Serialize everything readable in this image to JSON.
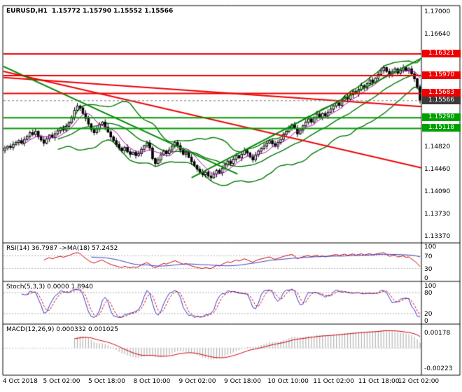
{
  "header": {
    "title": "EURUSD,H1",
    "ohlc": "1.15772 1.15790 1.15552 1.15566"
  },
  "chart_data": {
    "type": "candlestick",
    "symbol": "EURUSD",
    "timeframe": "H1",
    "current_bar": {
      "open": 1.15772,
      "high": 1.1579,
      "low": 1.15552,
      "close": 1.15566
    },
    "y_axis": {
      "price_max": 1.17102,
      "price_min": 1.13268
    },
    "y_ticks": [
      {
        "label": "1.17000",
        "price": 1.17,
        "style": "plain"
      },
      {
        "label": "1.16640",
        "price": 1.1664,
        "style": "plain"
      },
      {
        "label": "1.16321",
        "price": 1.16321,
        "style": "resistance"
      },
      {
        "label": "1.15970",
        "price": 1.1597,
        "style": "resistance"
      },
      {
        "label": "1.15683",
        "price": 1.15683,
        "style": "resistance"
      },
      {
        "label": "1.15566",
        "price": 1.15566,
        "style": "current"
      },
      {
        "label": "1.15290",
        "price": 1.1529,
        "style": "support"
      },
      {
        "label": "1.15118",
        "price": 1.15118,
        "style": "support"
      },
      {
        "label": "1.14820",
        "price": 1.1482,
        "style": "plain"
      },
      {
        "label": "1.14460",
        "price": 1.1446,
        "style": "plain"
      },
      {
        "label": "1.14090",
        "price": 1.1409,
        "style": "plain"
      },
      {
        "label": "1.13730",
        "price": 1.1373,
        "style": "plain"
      },
      {
        "label": "1.13370",
        "price": 1.1337,
        "style": "plain"
      }
    ],
    "x_labels": [
      {
        "label": "4 Oct 2018",
        "pos": 0.04
      },
      {
        "label": "5 Oct 02:00",
        "pos": 0.139
      },
      {
        "label": "5 Oct 18:00",
        "pos": 0.247
      },
      {
        "label": "8 Oct 10:00",
        "pos": 0.355
      },
      {
        "label": "9 Oct 02:00",
        "pos": 0.464
      },
      {
        "label": "9 Oct 18:00",
        "pos": 0.572
      },
      {
        "label": "10 Oct 10:00",
        "pos": 0.681
      },
      {
        "label": "11 Oct 02:00",
        "pos": 0.79
      },
      {
        "label": "11 Oct 18:00",
        "pos": 0.898
      },
      {
        "label": "12 Oct 02:00",
        "pos": 0.993
      }
    ],
    "closes": [
      1.148,
      1.1483,
      1.1481,
      1.1486,
      1.1489,
      1.1492,
      1.1488,
      1.1494,
      1.1499,
      1.1505,
      1.1502,
      1.1507,
      1.1498,
      1.1493,
      1.1488,
      1.1495,
      1.1501,
      1.1497,
      1.1503,
      1.1508,
      1.1512,
      1.1509,
      1.1515,
      1.1521,
      1.153,
      1.1541,
      1.1548,
      1.1545,
      1.1536,
      1.1528,
      1.1519,
      1.151,
      1.1505,
      1.1511,
      1.1518,
      1.1522,
      1.1514,
      1.1506,
      1.1498,
      1.1492,
      1.1486,
      1.148,
      1.1476,
      1.1481,
      1.1474,
      1.147,
      1.1473,
      1.1468,
      1.1471,
      1.1478,
      1.1484,
      1.1488,
      1.148,
      1.1463,
      1.1455,
      1.1461,
      1.1469,
      1.1475,
      1.1471,
      1.1477,
      1.1483,
      1.1489,
      1.1484,
      1.1477,
      1.147,
      1.1473,
      1.1465,
      1.1458,
      1.1452,
      1.1446,
      1.1441,
      1.1437,
      1.1441,
      1.1435,
      1.1432,
      1.1438,
      1.1444,
      1.144,
      1.1447,
      1.1453,
      1.1459,
      1.1455,
      1.1462,
      1.1468,
      1.1464,
      1.147,
      1.1476,
      1.1472,
      1.1466,
      1.1461,
      1.1469,
      1.1475,
      1.1479,
      1.1483,
      1.1488,
      1.1492,
      1.1487,
      1.1483,
      1.1489,
      1.1494,
      1.1502,
      1.1507,
      1.1513,
      1.1518,
      1.1512,
      1.1503,
      1.1509,
      1.1516,
      1.1522,
      1.1527,
      1.1522,
      1.1529,
      1.1535,
      1.153,
      1.1536,
      1.1532,
      1.1538,
      1.1543,
      1.1548,
      1.1553,
      1.1549,
      1.1557,
      1.1563,
      1.1559,
      1.1566,
      1.1572,
      1.1568,
      1.1575,
      1.1581,
      1.1577,
      1.1584,
      1.159,
      1.1586,
      1.1593,
      1.1599,
      1.1605,
      1.161,
      1.1604,
      1.1598,
      1.1603,
      1.1608,
      1.1601,
      1.1606,
      1.161,
      1.1605,
      1.1608,
      1.16,
      1.1592,
      1.1579,
      1.15566
    ],
    "current_price": 1.15566,
    "levels": [
      {
        "price": 1.16321,
        "color": "#ee0000",
        "width": 2,
        "role": "resistance"
      },
      {
        "price": 1.1597,
        "color": "#ee0000",
        "width": 2,
        "role": "resistance"
      },
      {
        "price": 1.15683,
        "color": "#ee0000",
        "width": 2,
        "role": "resistance"
      },
      {
        "price": 1.1529,
        "color": "#009900",
        "width": 2,
        "role": "support"
      },
      {
        "price": 1.15118,
        "color": "#009900",
        "width": 2,
        "role": "support"
      }
    ],
    "trendlines": [
      {
        "x1": 0.0,
        "p1": 1.1604,
        "x2": 1.0,
        "p2": 1.1448,
        "color": "#ee0000",
        "width": 2
      },
      {
        "x1": 0.0,
        "p1": 1.1594,
        "x2": 1.0,
        "p2": 1.1547,
        "color": "#ee0000",
        "width": 2
      },
      {
        "x1": 0.0,
        "p1": 1.1612,
        "x2": 0.56,
        "p2": 1.1438,
        "color": "#008800",
        "width": 2
      },
      {
        "x1": 0.45,
        "p1": 1.1432,
        "x2": 1.0,
        "p2": 1.1625,
        "color": "#008800",
        "width": 2
      }
    ],
    "indicators": {
      "rsi": {
        "label": "RSI(14) 36.7987 ->MA(18) 57.2452",
        "period": 14,
        "ma_period": 18,
        "value": 36.7987,
        "ma_value": 57.2452,
        "ticks": [
          {
            "label": "100",
            "value": 100
          },
          {
            "label": "70",
            "value": 70
          },
          {
            "label": "30",
            "value": 30
          },
          {
            "label": "0",
            "value": 0
          }
        ],
        "dashed_levels": [
          70,
          30
        ]
      },
      "stoch": {
        "label": "Stoch(5,3,3) 0.0000 1.8940",
        "k_period": 5,
        "d_period": 3,
        "slowing": 3,
        "value": 0.0,
        "signal_value": 1.894,
        "ticks": [
          {
            "label": "100",
            "value": 100
          },
          {
            "label": "80",
            "value": 80
          },
          {
            "label": "20",
            "value": 20
          },
          {
            "label": "0",
            "value": 0
          }
        ],
        "dashed_levels": [
          80,
          20
        ]
      },
      "macd": {
        "label": "MACD(12,26,9) 0.000332 0.001025",
        "fast": 12,
        "slow": 26,
        "signal": 9,
        "value": 0.000332,
        "signal_value": 0.001025,
        "ticks": [
          {
            "label": "0.00178",
            "value": 0.00178
          },
          {
            "label": "-0.00223",
            "value": -0.00223
          }
        ],
        "range": [
          -0.0028,
          0.0023
        ]
      }
    },
    "colors": {
      "background": "#ffffff",
      "border": "#000000",
      "candle_up": "#ffffff",
      "candle_down": "#000000",
      "candle_outline": "#000000",
      "bollinger": "#007800",
      "ma_fast": "#b000b0",
      "resistance": "#ee0000",
      "support": "#00a000",
      "current_badge": "#3a3a3a",
      "rsi_line": "#cc0000",
      "rsi_ma": "#3a3acc",
      "stoch_main": "#3333cc",
      "stoch_signal": "#cc0000",
      "macd_hist": "#b4b4b4",
      "macd_signal": "#cc0000"
    }
  }
}
